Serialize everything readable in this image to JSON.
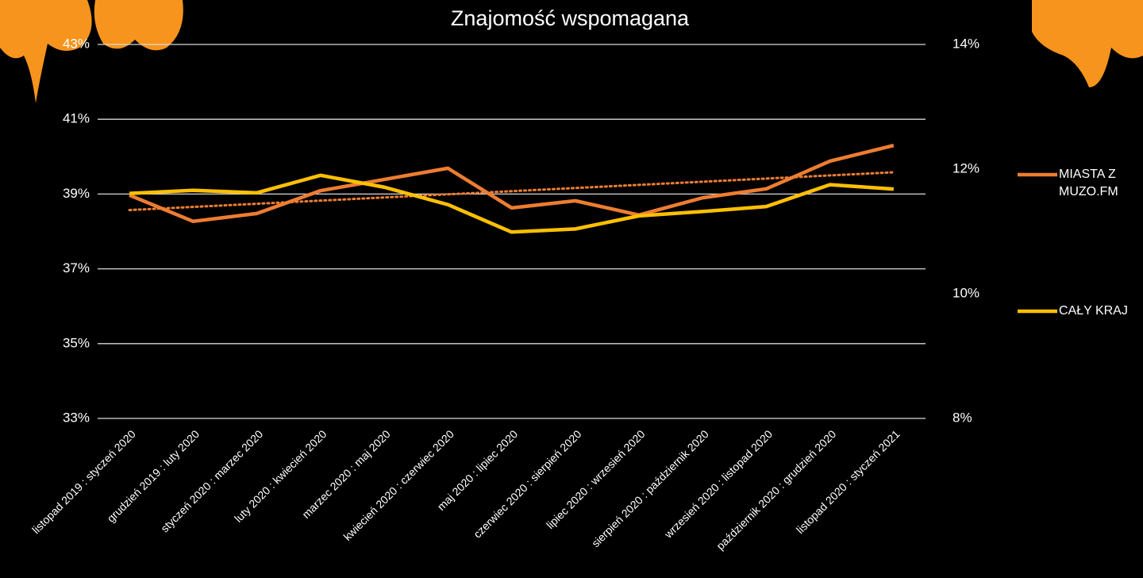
{
  "chart_data": {
    "type": "line",
    "title": "Znajomość wspomagana",
    "categories": [
      "listopad 2019 : styczeń 2020",
      "grudzień 2019 : luty 2020",
      "styczeń 2020 : marzec 2020",
      "luty 2020 : kwiecień 2020",
      "marzec 2020 : maj 2020",
      "kwiecień 2020 : czerwiec 2020",
      "maj 2020 : lipiec 2020",
      "czerwiec 2020 : sierpień 2020",
      "lipiec 2020 : wrzesień 2020",
      "sierpień 2020 : październik 2020",
      "wrzesień 2020 : listopad 2020",
      "październik 2020 : grudzień 2020",
      "listopad 2020 : styczeń 2021"
    ],
    "series": [
      {
        "name": "MIASTA Z MUZO.FM",
        "color": "#ed7d31",
        "values": [
          38.97,
          38.27,
          38.48,
          39.09,
          39.39,
          39.69,
          38.63,
          38.82,
          38.44,
          38.9,
          39.14,
          39.88,
          40.3
        ],
        "trendline": true
      },
      {
        "name": "CAŁY KRAJ",
        "color": "#ffc000",
        "axis": "y2",
        "values": [
          11.61,
          11.66,
          11.62,
          11.9,
          11.71,
          11.43,
          10.99,
          11.04,
          11.25,
          11.32,
          11.4,
          11.75,
          11.68
        ]
      }
    ],
    "ylim": [
      33,
      43
    ],
    "yticks": [
      {
        "value": 33,
        "label": "33%"
      },
      {
        "value": 35,
        "label": "35%"
      },
      {
        "value": 37,
        "label": "37%"
      },
      {
        "value": 39,
        "label": "39%"
      },
      {
        "value": 41,
        "label": "41%"
      },
      {
        "value": 43,
        "label": "43%"
      }
    ],
    "y2lim": [
      8,
      14
    ],
    "y2ticks": [
      {
        "value": 8,
        "label": "8%"
      },
      {
        "value": 10,
        "label": "10%"
      },
      {
        "value": 12,
        "label": "12%"
      },
      {
        "value": 14,
        "label": "14%"
      }
    ],
    "grid": true
  }
}
